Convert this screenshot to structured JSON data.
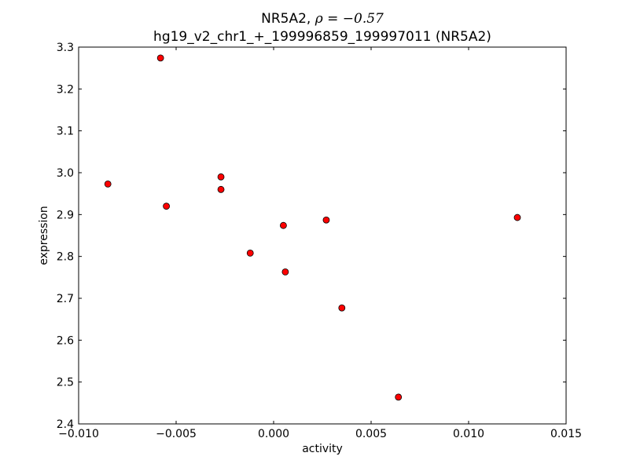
{
  "chart_data": {
    "type": "scatter",
    "title_line1_prefix": "NR5A2, ",
    "title_math": "ρ = −0.57",
    "title_line2": "hg19_v2_chr1_+_199996859_199997011 (NR5A2)",
    "xlabel": "activity",
    "ylabel": "expression",
    "xlim": [
      -0.01,
      0.015
    ],
    "ylim": [
      2.4,
      3.3
    ],
    "x_ticks": [
      -0.01,
      -0.005,
      0.0,
      0.005,
      0.01,
      0.015
    ],
    "x_tick_labels": [
      "−0.010",
      "−0.005",
      "0.000",
      "0.005",
      "0.010",
      "0.015"
    ],
    "y_ticks": [
      2.4,
      2.5,
      2.6,
      2.7,
      2.8,
      2.9,
      3.0,
      3.1,
      3.2,
      3.3
    ],
    "y_tick_labels": [
      "2.4",
      "2.5",
      "2.6",
      "2.7",
      "2.8",
      "2.9",
      "3.0",
      "3.1",
      "3.2",
      "3.3"
    ],
    "grid": false,
    "marker_color": "#ff0000",
    "marker_edge_color": "#000000",
    "points": [
      {
        "x": -0.0085,
        "y": 2.973
      },
      {
        "x": -0.0058,
        "y": 3.274
      },
      {
        "x": -0.0055,
        "y": 2.92
      },
      {
        "x": -0.0027,
        "y": 2.99
      },
      {
        "x": -0.0027,
        "y": 2.96
      },
      {
        "x": -0.0012,
        "y": 2.808
      },
      {
        "x": 0.0005,
        "y": 2.874
      },
      {
        "x": 0.0006,
        "y": 2.763
      },
      {
        "x": 0.0027,
        "y": 2.887
      },
      {
        "x": 0.0035,
        "y": 2.677
      },
      {
        "x": 0.0064,
        "y": 2.464
      },
      {
        "x": 0.0125,
        "y": 2.893
      }
    ]
  }
}
